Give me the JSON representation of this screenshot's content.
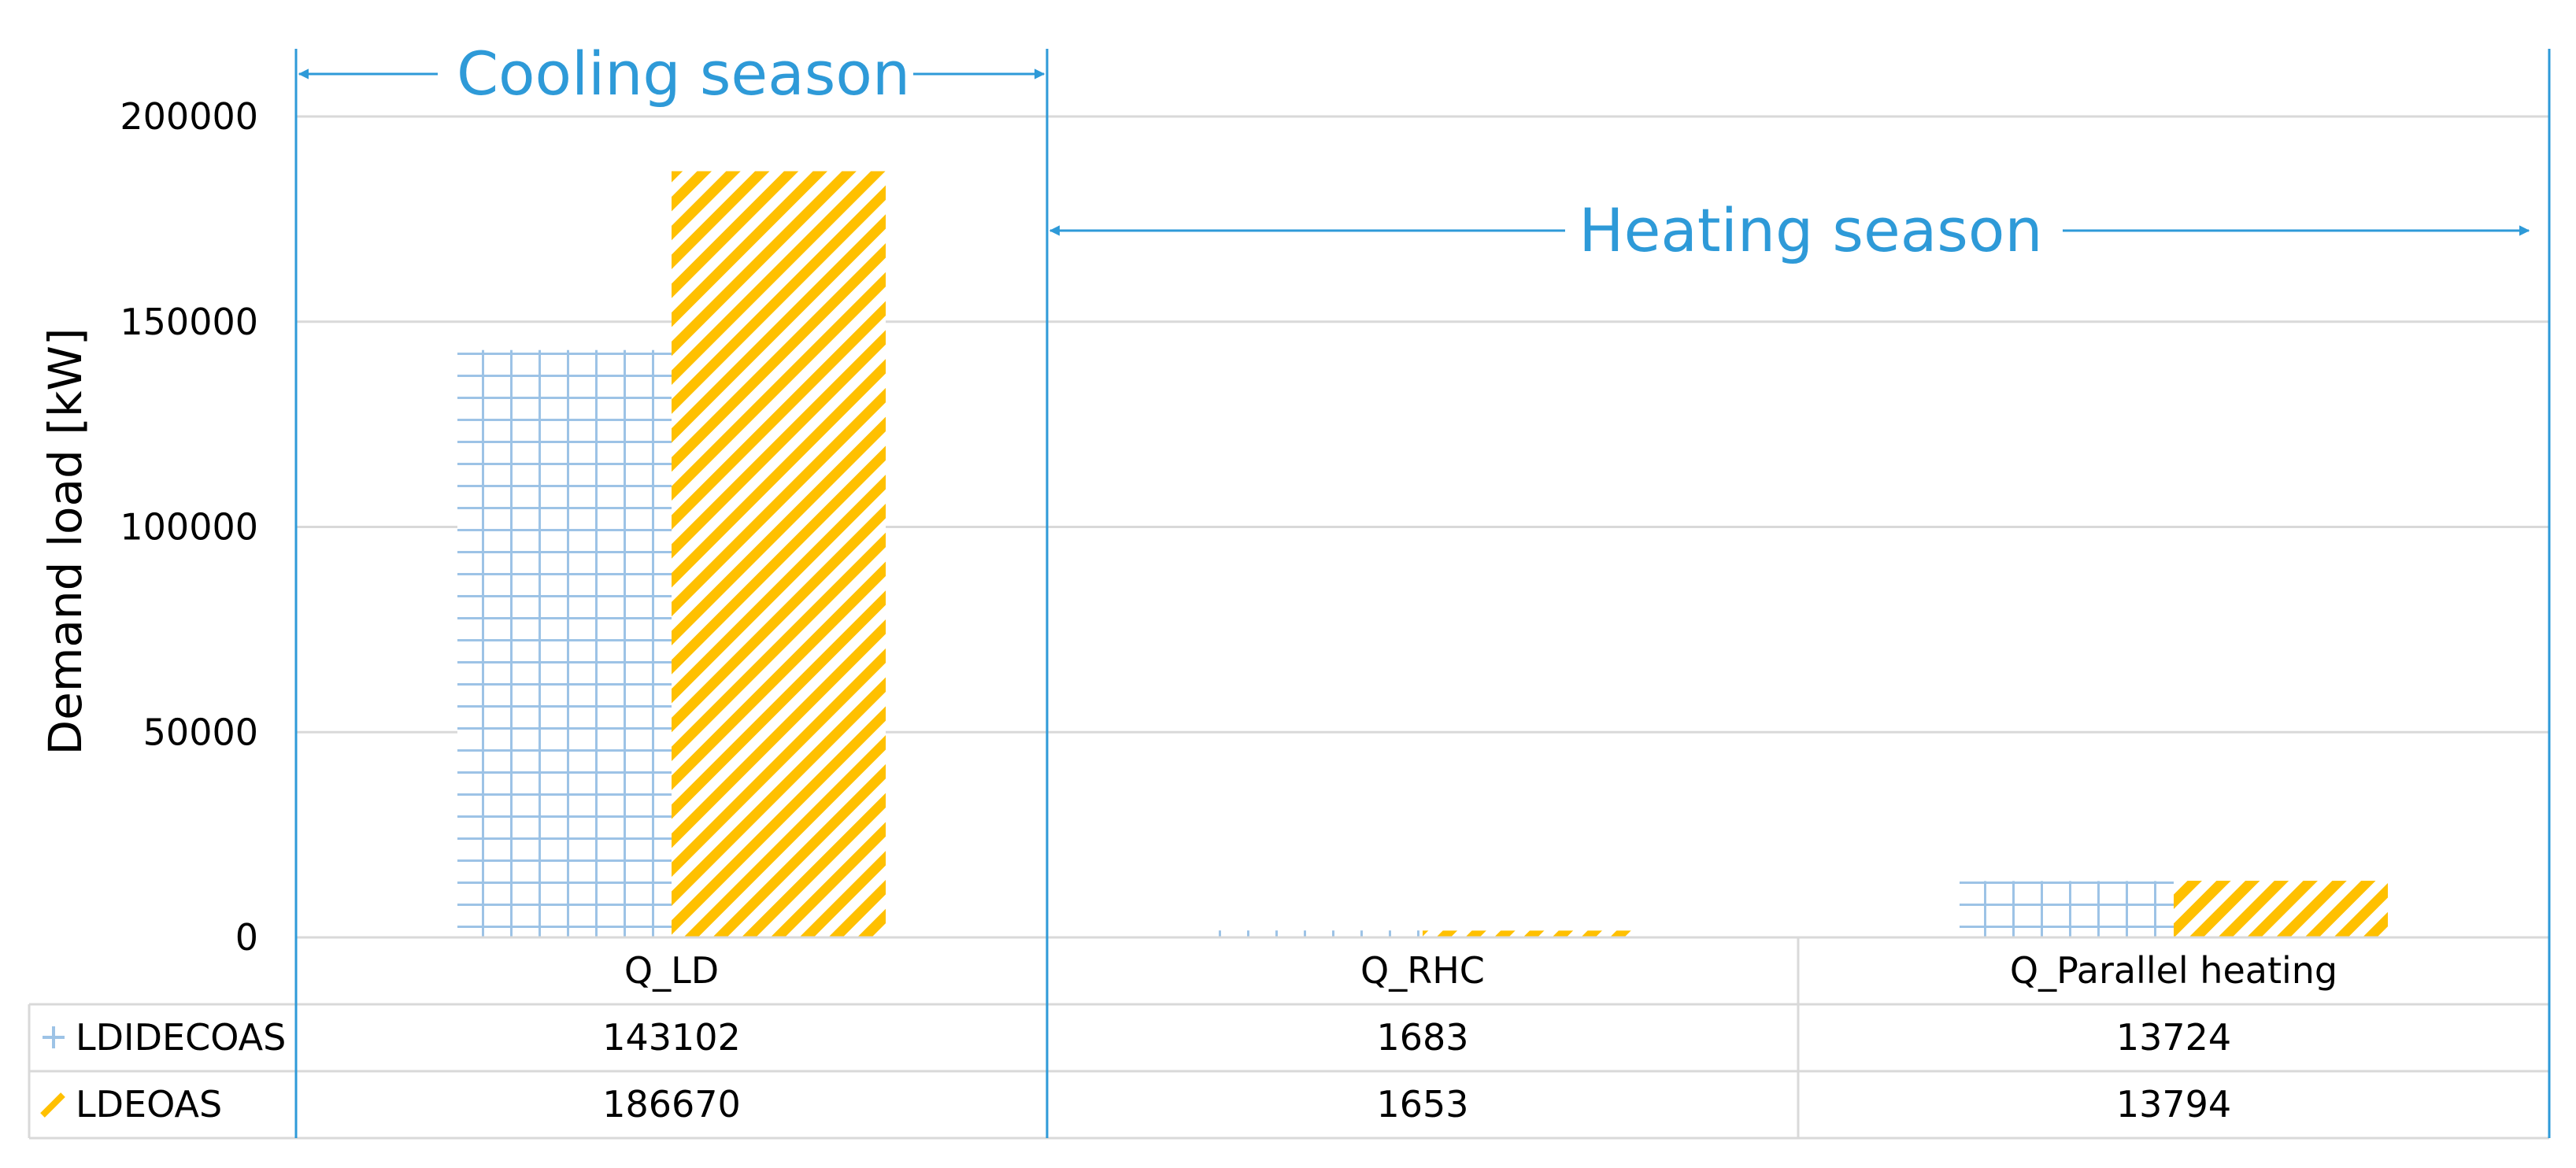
{
  "chart_data": {
    "type": "bar",
    "categories": [
      "Q_LD",
      "Q_RHC",
      "Q_Parallel heating"
    ],
    "series": [
      {
        "name": "LDIDECOAS",
        "values": [
          143102,
          1683,
          13724
        ],
        "color": "#9dc3e6",
        "pattern": "grid"
      },
      {
        "name": "LDEOAS",
        "values": [
          186670,
          1653,
          13794
        ],
        "color": "#ffc000",
        "pattern": "diagonal-stripes"
      }
    ],
    "ylabel": "Demand load [kW]",
    "xlabel": "",
    "ylim": [
      0,
      200000
    ],
    "yticks": [
      0,
      50000,
      100000,
      150000,
      200000
    ],
    "grid": true,
    "legend": "data-table",
    "annotations": [
      {
        "text": "Cooling season",
        "categories": [
          "Q_LD"
        ],
        "color": "#2e9ad8"
      },
      {
        "text": "Heating season",
        "categories": [
          "Q_RHC",
          "Q_Parallel heating"
        ],
        "color": "#2e9ad8"
      }
    ]
  }
}
